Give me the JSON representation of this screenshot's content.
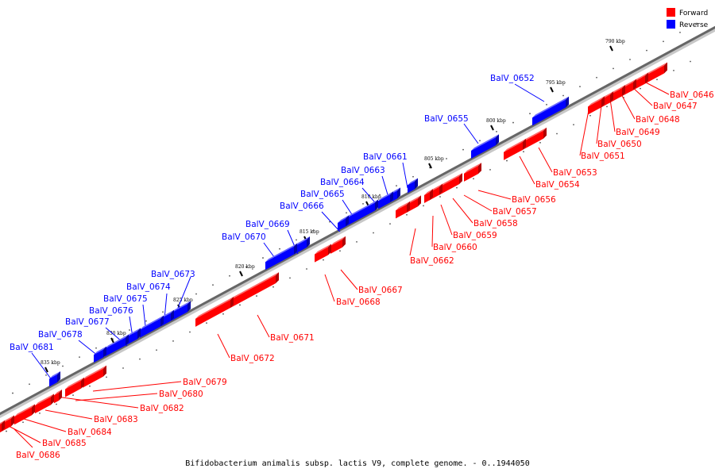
{
  "caption": "Bifidobacterium animalis subsp. lactis V9, complete genome. - 0..1944050",
  "legend": {
    "forward_label": "Forward",
    "reverse_label": "Reverse",
    "forward_color": "#ff0000",
    "reverse_color": "#0000ff"
  },
  "ticks": [
    "790 kbp",
    "795 kbp",
    "800 kbp",
    "805 kbp",
    "810 kbp",
    "815 kbp",
    "820 kbp",
    "825 kbp",
    "830 kbp",
    "835 kbp"
  ],
  "genes": [
    {
      "id": "BalV_0646",
      "strand": "forward"
    },
    {
      "id": "BalV_0647",
      "strand": "forward"
    },
    {
      "id": "BalV_0648",
      "strand": "forward"
    },
    {
      "id": "BalV_0649",
      "strand": "forward"
    },
    {
      "id": "BalV_0650",
      "strand": "forward"
    },
    {
      "id": "BalV_0651",
      "strand": "forward"
    },
    {
      "id": "BalV_0652",
      "strand": "reverse"
    },
    {
      "id": "BalV_0653",
      "strand": "forward"
    },
    {
      "id": "BalV_0654",
      "strand": "forward"
    },
    {
      "id": "BalV_0655",
      "strand": "reverse"
    },
    {
      "id": "BalV_0656",
      "strand": "forward"
    },
    {
      "id": "BalV_0657",
      "strand": "forward"
    },
    {
      "id": "BalV_0658",
      "strand": "forward"
    },
    {
      "id": "BalV_0659",
      "strand": "forward"
    },
    {
      "id": "BalV_0660",
      "strand": "forward"
    },
    {
      "id": "BalV_0661",
      "strand": "reverse"
    },
    {
      "id": "BalV_0662",
      "strand": "forward"
    },
    {
      "id": "BalV_0663",
      "strand": "reverse"
    },
    {
      "id": "BalV_0664",
      "strand": "reverse"
    },
    {
      "id": "BalV_0665",
      "strand": "reverse"
    },
    {
      "id": "BalV_0666",
      "strand": "reverse"
    },
    {
      "id": "BalV_0667",
      "strand": "forward"
    },
    {
      "id": "BalV_0668",
      "strand": "forward"
    },
    {
      "id": "BalV_0669",
      "strand": "reverse"
    },
    {
      "id": "BalV_0670",
      "strand": "reverse"
    },
    {
      "id": "BalV_0671",
      "strand": "forward"
    },
    {
      "id": "BalV_0672",
      "strand": "forward"
    },
    {
      "id": "BalV_0673",
      "strand": "reverse"
    },
    {
      "id": "BalV_0674",
      "strand": "reverse"
    },
    {
      "id": "BalV_0675",
      "strand": "reverse"
    },
    {
      "id": "BalV_0676",
      "strand": "reverse"
    },
    {
      "id": "BalV_0677",
      "strand": "reverse"
    },
    {
      "id": "BalV_0678",
      "strand": "reverse"
    },
    {
      "id": "BalV_0679",
      "strand": "forward"
    },
    {
      "id": "BalV_0680",
      "strand": "forward"
    },
    {
      "id": "BalV_0681",
      "strand": "reverse"
    },
    {
      "id": "BalV_0682",
      "strand": "forward"
    },
    {
      "id": "BalV_0683",
      "strand": "forward"
    },
    {
      "id": "BalV_0684",
      "strand": "forward"
    },
    {
      "id": "BalV_0685",
      "strand": "forward"
    },
    {
      "id": "BalV_0686",
      "strand": "forward"
    }
  ]
}
